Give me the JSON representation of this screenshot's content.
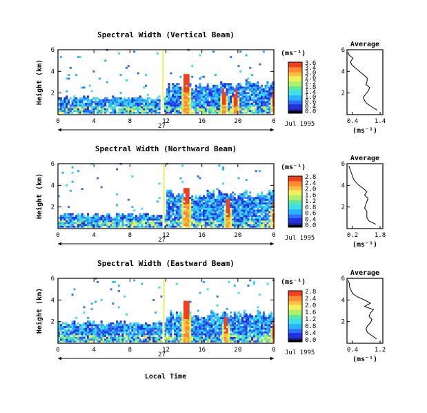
{
  "figure": {
    "xlabel": "Local Time",
    "colors": [
      "#ffffff",
      "#1a1a8c",
      "#2233dd",
      "#2f6fff",
      "#28b4ff",
      "#3de0e8",
      "#5fe8a0",
      "#aef06a",
      "#f0f05a",
      "#ffc040",
      "#ff8a30",
      "#f04020"
    ]
  },
  "chart_data": [
    {
      "type": "heatmap",
      "title": "Spectral Width (Vertical Beam)",
      "ylabel": "Height (km)",
      "x_ticks": [
        "0",
        "4",
        "8",
        "12",
        "16",
        "20",
        "0"
      ],
      "ylim": [
        0,
        6
      ],
      "y_ticks": [
        "6",
        "4",
        "2"
      ],
      "date_marker": "27",
      "date_label": "Jul 1995",
      "gap_hours": [
        11.2,
        11.6
      ],
      "colorbar": {
        "unit": "(ms⁻¹)",
        "labels": [
          "3.6",
          "3.4",
          "3.0",
          "2.6",
          "2.2",
          "1.8",
          "1.4",
          "1.0",
          "0.6",
          "0.4",
          "0.0"
        ]
      },
      "features": [
        {
          "hour": 14.2,
          "height_top": 3.6,
          "width": 0.5,
          "strength": 3.0
        },
        {
          "hour": 18.4,
          "height_top": 2.4,
          "width": 0.4,
          "strength": 2.2
        },
        {
          "hour": 19.6,
          "height_top": 2.2,
          "width": 0.4,
          "strength": 1.8
        },
        {
          "hour": 23.9,
          "height_top": 2.2,
          "width": 0.3,
          "strength": 2.0
        }
      ],
      "base_top_left": 1.5,
      "base_top_right": 2.7,
      "average": {
        "title": "Average",
        "x_ticks": [
          "0.4",
          "1.4"
        ],
        "xlim": [
          0.2,
          1.6
        ],
        "y_ticks": [
          "6",
          "4",
          "2"
        ],
        "ylim": [
          0,
          6
        ],
        "unit": "(ms⁻¹)",
        "heights": [
          0.4,
          0.7,
          1.0,
          1.3,
          1.6,
          1.9,
          2.2,
          2.5,
          2.8,
          3.1,
          3.4,
          3.7,
          4.0,
          4.3,
          4.6,
          4.9,
          5.2,
          5.5,
          5.8
        ],
        "values": [
          1.4,
          1.2,
          1.0,
          0.9,
          0.85,
          0.95,
          1.05,
          1.1,
          0.95,
          1.0,
          1.0,
          0.85,
          0.7,
          0.55,
          0.4,
          0.35,
          0.45,
          0.3,
          0.25
        ]
      }
    },
    {
      "type": "heatmap",
      "title": "Spectral Width (Northward Beam)",
      "ylabel": "Height (km)",
      "x_ticks": [
        "0",
        "4",
        "8",
        "12",
        "16",
        "20",
        "0"
      ],
      "ylim": [
        0,
        6
      ],
      "y_ticks": [
        "6",
        "4",
        "2"
      ],
      "date_marker": "27",
      "date_label": "Jul 1995",
      "gap_hours": [
        11.4,
        11.7
      ],
      "colorbar": {
        "unit": "(ms⁻¹)",
        "labels": [
          "2.8",
          "2.4",
          "2.0",
          "1.6",
          "1.2",
          "0.8",
          "0.6",
          "0.4",
          "0.0"
        ]
      },
      "features": [
        {
          "hour": 14.2,
          "height_top": 3.7,
          "width": 0.5,
          "strength": 2.8
        },
        {
          "hour": 18.8,
          "height_top": 2.6,
          "width": 0.4,
          "strength": 2.0
        },
        {
          "hour": 23.9,
          "height_top": 2.3,
          "width": 0.3,
          "strength": 2.0
        }
      ],
      "base_top_left": 1.2,
      "base_top_right": 3.2,
      "average": {
        "title": "Average",
        "x_ticks": [
          "0.2",
          "1.8"
        ],
        "xlim": [
          0.2,
          1.8
        ],
        "y_ticks": [
          "6",
          "4",
          "2"
        ],
        "ylim": [
          0,
          6
        ],
        "unit": "(ms⁻¹)",
        "heights": [
          0.4,
          0.7,
          1.0,
          1.3,
          1.6,
          1.9,
          2.2,
          2.5,
          2.8,
          3.1,
          3.4,
          3.7,
          4.0,
          4.3,
          4.6,
          4.9,
          5.2,
          5.5,
          5.8
        ],
        "values": [
          1.5,
          1.2,
          1.1,
          1.1,
          1.1,
          1.0,
          1.05,
          1.1,
          1.15,
          1.0,
          1.1,
          0.95,
          0.75,
          0.6,
          0.5,
          0.45,
          0.4,
          0.35,
          0.3
        ]
      }
    },
    {
      "type": "heatmap",
      "title": "Spectral Width (Eastward Beam)",
      "ylabel": "Height (km)",
      "x_ticks": [
        "0",
        "4",
        "8",
        "12",
        "16",
        "20",
        "0"
      ],
      "ylim": [
        0,
        6
      ],
      "y_ticks": [
        "6",
        "4",
        "2"
      ],
      "date_marker": "27",
      "date_label": "Jul 1995",
      "gap_hours": [
        11.4,
        11.7
      ],
      "colorbar": {
        "unit": "(ms⁻¹)",
        "labels": [
          "2.8",
          "2.4",
          "2.0",
          "1.6",
          "1.2",
          "0.8",
          "0.4",
          "0.0"
        ]
      },
      "features": [
        {
          "hour": 14.2,
          "height_top": 3.8,
          "width": 0.5,
          "strength": 2.8
        },
        {
          "hour": 18.6,
          "height_top": 2.4,
          "width": 0.4,
          "strength": 2.0
        },
        {
          "hour": 23.9,
          "height_top": 2.0,
          "width": 0.3,
          "strength": 2.0
        }
      ],
      "base_top_left": 1.8,
      "base_top_right": 2.6,
      "average": {
        "title": "Average",
        "x_ticks": [
          "0.4",
          "1.2"
        ],
        "xlim": [
          0.2,
          1.4
        ],
        "y_ticks": [
          "6",
          "4",
          "2"
        ],
        "ylim": [
          0,
          6
        ],
        "unit": "(ms⁻¹)",
        "heights": [
          0.4,
          0.7,
          1.0,
          1.3,
          1.6,
          1.9,
          2.2,
          2.5,
          2.8,
          3.1,
          3.4,
          3.7,
          4.0,
          4.3,
          4.6,
          4.9,
          5.2,
          5.5,
          5.8
        ],
        "values": [
          1.2,
          1.05,
          0.9,
          0.85,
          0.9,
          1.0,
          1.05,
          0.95,
          1.0,
          1.1,
          0.8,
          1.0,
          0.8,
          0.55,
          0.4,
          0.35,
          0.3,
          0.3,
          0.25
        ]
      }
    }
  ]
}
